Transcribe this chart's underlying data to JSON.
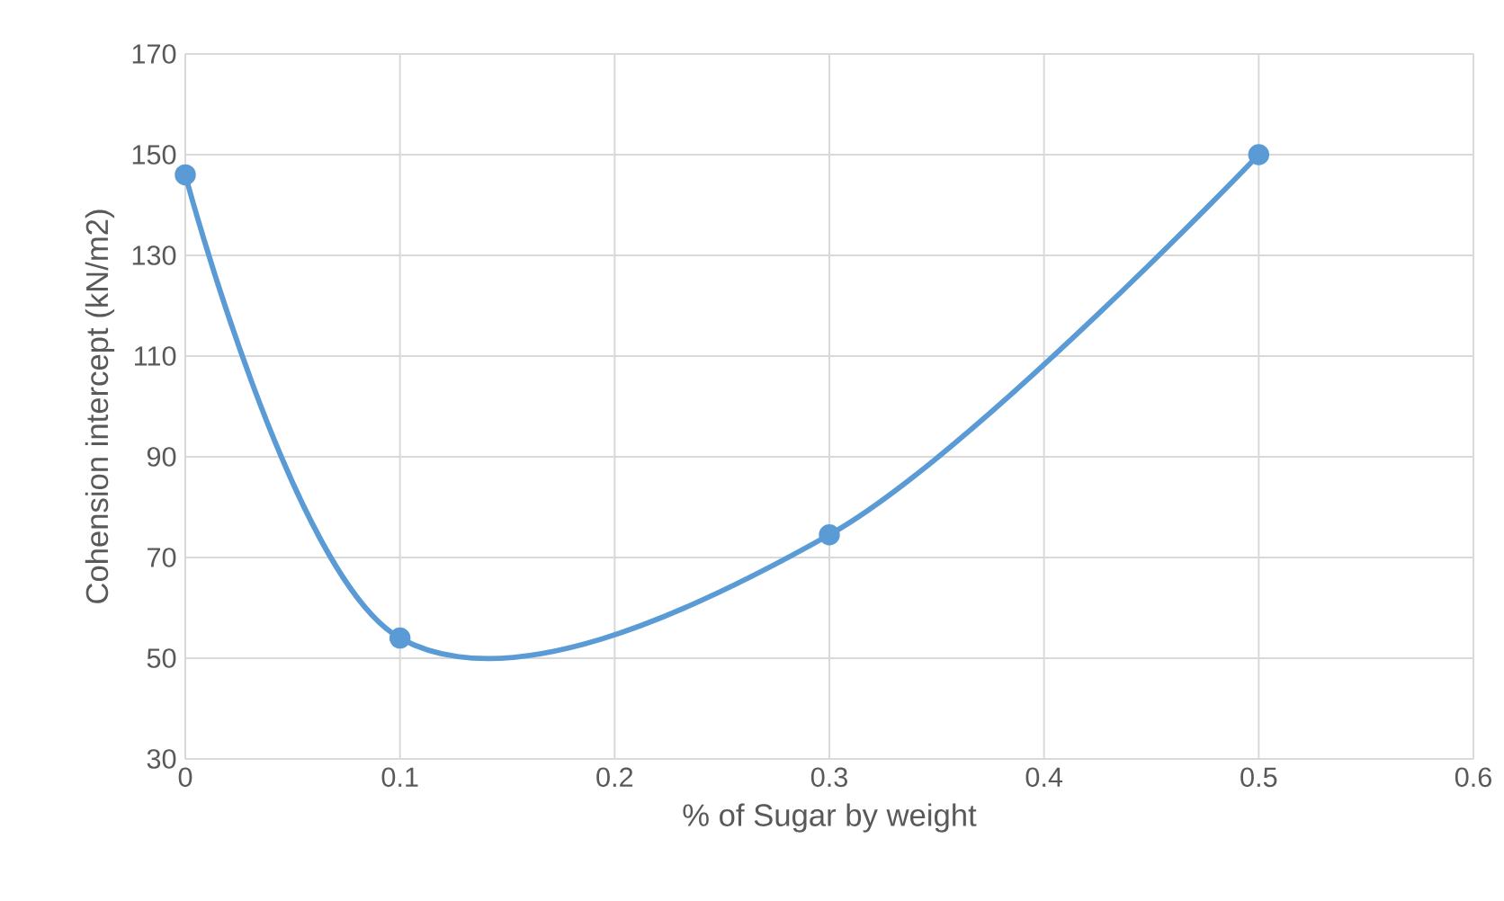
{
  "chart_data": {
    "type": "line",
    "xlabel": "% of Sugar by weight",
    "ylabel": "Cohension intercept (kN/m2)",
    "x": [
      0,
      0.1,
      0.3,
      0.5
    ],
    "series": [
      {
        "color": "#5b9bd5",
        "values": [
          146,
          54,
          74.5,
          150
        ]
      }
    ],
    "xlim": [
      0,
      0.6
    ],
    "xticks": [
      0,
      0.1,
      0.2,
      0.3,
      0.4,
      0.5,
      0.6
    ],
    "ylim": [
      30,
      170
    ],
    "yticks": [
      30,
      50,
      70,
      90,
      110,
      130,
      150,
      170
    ],
    "grid": true,
    "marker": "circle",
    "line_style": "solid"
  }
}
